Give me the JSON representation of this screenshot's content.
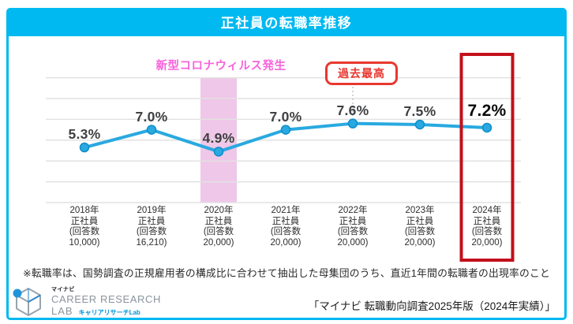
{
  "header": {
    "title": "正社員の転職率推移",
    "accent_color": "#00B9F0"
  },
  "chart_data": {
    "type": "line",
    "title": "正社員の転職率推移",
    "values": [
      5.3,
      7.0,
      4.9,
      7.0,
      7.6,
      7.5,
      7.2
    ],
    "value_labels": [
      "5.3%",
      "7.0%",
      "4.9%",
      "7.0%",
      "7.6%",
      "7.5%",
      "7.2%"
    ],
    "categories": [
      [
        "2018年",
        "正社員",
        "(回答数",
        "10,000)"
      ],
      [
        "2019年",
        "正社員",
        "(回答数",
        "16,210)"
      ],
      [
        "2020年",
        "正社員",
        "(回答数",
        "20,000)"
      ],
      [
        "2021年",
        "正社員",
        "(回答数",
        "20,000)"
      ],
      [
        "2022年",
        "正社員",
        "(回答数",
        "20,000)"
      ],
      [
        "2023年",
        "正社員",
        "(回答数",
        "20,000)"
      ],
      [
        "2024年",
        "正社員",
        "(回答数",
        "20,000)"
      ]
    ],
    "xlabel": "",
    "ylabel": "",
    "unit": "%",
    "ylim": [
      0,
      12
    ],
    "grid_step": 2,
    "grid": true,
    "legend": "none",
    "line_color": "#29A9E0",
    "dot_stroke_color": "#0E8ECB",
    "grid_color": "#E2E2E2",
    "band_color": "#EFC7E8",
    "highlight_color": "#C3101B",
    "annotation_pink": "#F763DC",
    "annotation_red": "#E8382F",
    "annotations": {
      "covid": "新型コロナウィルス発生",
      "peak": "過去最高"
    },
    "covid_band_index": 2,
    "peak_point_index": 4,
    "highlight_point_index": 6
  },
  "footnote": "※転職率は、国勢調査の正規雇用者の構成比に合わせて抽出した母集団のうち、直近1年間の転職者の出現率のこと",
  "source": "「マイナビ 転職動向調査2025年版（2024年実績）」",
  "logo": {
    "brand": "マイナビ",
    "line1": "CAREER RESEARCH",
    "line2": "LAB",
    "jp": "キャリアリサーチLab"
  }
}
